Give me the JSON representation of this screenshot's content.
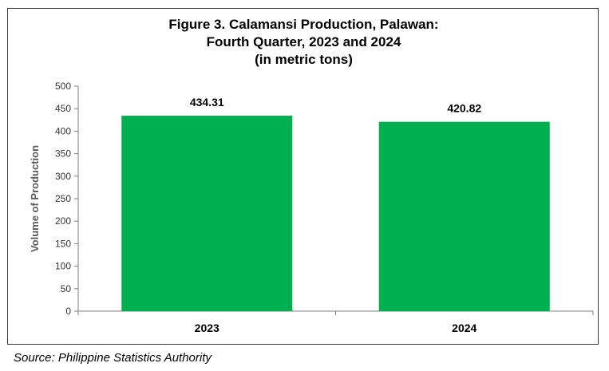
{
  "chart_data": {
    "type": "bar",
    "title_lines": [
      "Figure 3. Calamansi Production, Palawan:",
      "Fourth Quarter, 2023 and 2024",
      "(in metric tons)"
    ],
    "categories": [
      "2023",
      "2024"
    ],
    "values": [
      434.31,
      420.82
    ],
    "data_labels": [
      "434.31",
      "420.82"
    ],
    "xlabel": "",
    "ylabel": "Volume of Production",
    "ylim": [
      0,
      500
    ],
    "yticks": [
      0,
      50,
      100,
      150,
      200,
      250,
      300,
      350,
      400,
      450,
      500
    ],
    "grid": false,
    "legend": "none",
    "bar_color": "#00b050"
  },
  "source": "Source: Philippine Statistics Authority"
}
